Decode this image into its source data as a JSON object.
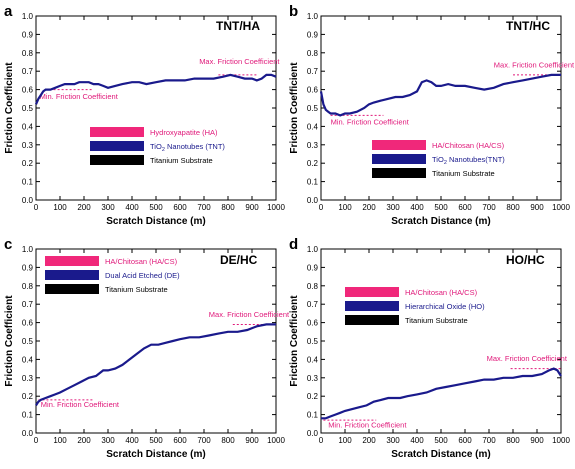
{
  "chart_data": [
    {
      "type": "line",
      "panel": "a",
      "title": "TNT/HA",
      "xlabel": "Scratch Distance (m)",
      "ylabel": "Friction Coefficient",
      "xlim": [
        0,
        1000
      ],
      "ylim": [
        0,
        1.0
      ],
      "xticks": [
        "0",
        "100",
        "200",
        "300",
        "400",
        "500",
        "600",
        "700",
        "800",
        "900",
        "1000"
      ],
      "yticks": [
        "0.0",
        "0.1",
        "0.2",
        "0.3",
        "0.4",
        "0.5",
        "0.6",
        "0.7",
        "0.8",
        "0.9",
        "1.0"
      ],
      "series": [
        {
          "color": "#1a1a8c",
          "x": [
            0,
            10,
            20,
            30,
            40,
            60,
            80,
            100,
            120,
            140,
            160,
            180,
            200,
            220,
            240,
            260,
            280,
            300,
            330,
            360,
            400,
            430,
            460,
            500,
            540,
            580,
            620,
            660,
            700,
            740,
            780,
            810,
            840,
            870,
            900,
            920,
            940,
            960,
            980,
            1000
          ],
          "y": [
            0.52,
            0.55,
            0.57,
            0.59,
            0.6,
            0.6,
            0.61,
            0.62,
            0.63,
            0.63,
            0.63,
            0.64,
            0.64,
            0.64,
            0.63,
            0.63,
            0.62,
            0.61,
            0.62,
            0.63,
            0.64,
            0.64,
            0.63,
            0.64,
            0.65,
            0.65,
            0.65,
            0.66,
            0.66,
            0.66,
            0.67,
            0.68,
            0.67,
            0.66,
            0.66,
            0.65,
            0.66,
            0.68,
            0.68,
            0.67
          ]
        }
      ],
      "annotations": {
        "max": {
          "label": "Max. Friction Coefficient",
          "y": 0.68,
          "x1": 760,
          "x2": 920,
          "label_x": 680,
          "label_y": 0.74
        },
        "min": {
          "label": "Min. Friction Coefficient",
          "y": 0.6,
          "x1": 40,
          "x2": 240,
          "label_x": 15,
          "label_y": 0.55
        }
      },
      "legend": [
        {
          "label": "Hydroxyapatite (HA)",
          "swatch": "#f0287a",
          "text_color": "#e0197a"
        },
        {
          "label": "TiO2 Nanotubes (TNT)",
          "swatch": "#1a1a8c",
          "text_color": "#1a1a8c"
        },
        {
          "label": "Titanium Substrate",
          "swatch": "#000000",
          "text_color": "#000000"
        }
      ]
    },
    {
      "type": "line",
      "panel": "b",
      "title": "TNT/HC",
      "xlabel": "Scratch Distance (m)",
      "ylabel": "Friction Coefficient",
      "xlim": [
        0,
        1000
      ],
      "ylim": [
        0,
        1.0
      ],
      "xticks": [
        "0",
        "100",
        "200",
        "300",
        "400",
        "500",
        "600",
        "700",
        "800",
        "900",
        "1000"
      ],
      "yticks": [
        "0.0",
        "0.1",
        "0.2",
        "0.3",
        "0.4",
        "0.5",
        "0.6",
        "0.7",
        "0.8",
        "0.9",
        "1.0"
      ],
      "series": [
        {
          "color": "#1a1a8c",
          "x": [
            0,
            10,
            20,
            30,
            40,
            60,
            80,
            100,
            120,
            150,
            180,
            200,
            220,
            250,
            280,
            310,
            340,
            370,
            400,
            420,
            440,
            460,
            480,
            500,
            530,
            560,
            600,
            640,
            680,
            720,
            760,
            800,
            840,
            880,
            920,
            960,
            1000
          ],
          "y": [
            0.59,
            0.52,
            0.49,
            0.48,
            0.47,
            0.47,
            0.46,
            0.47,
            0.47,
            0.48,
            0.5,
            0.52,
            0.53,
            0.54,
            0.55,
            0.56,
            0.56,
            0.57,
            0.59,
            0.64,
            0.65,
            0.64,
            0.62,
            0.62,
            0.63,
            0.62,
            0.62,
            0.61,
            0.6,
            0.61,
            0.63,
            0.64,
            0.65,
            0.66,
            0.67,
            0.68,
            0.68
          ]
        }
      ],
      "annotations": {
        "max": {
          "label": "Max. Friction Coefficient",
          "y": 0.68,
          "x1": 800,
          "x2": 1000,
          "label_x": 720,
          "label_y": 0.72
        },
        "min": {
          "label": "Min. Friction Coefficient",
          "y": 0.46,
          "x1": 40,
          "x2": 260,
          "label_x": 40,
          "label_y": 0.41
        }
      },
      "legend": [
        {
          "label": "HA/Chitosan (HA/CS)",
          "swatch": "#f0287a",
          "text_color": "#e0197a"
        },
        {
          "label": "TiO2 Nanotubes(TNT)",
          "swatch": "#1a1a8c",
          "text_color": "#1a1a8c"
        },
        {
          "label": "Titanium Substrate",
          "swatch": "#000000",
          "text_color": "#000000"
        }
      ]
    },
    {
      "type": "line",
      "panel": "c",
      "title": "DE/HC",
      "xlabel": "Scratch Distance (m)",
      "ylabel": "Friction Coefficient",
      "xlim": [
        0,
        1000
      ],
      "ylim": [
        0,
        1.0
      ],
      "xticks": [
        "0",
        "100",
        "200",
        "300",
        "400",
        "500",
        "600",
        "700",
        "800",
        "900",
        "1000"
      ],
      "yticks": [
        "0.0",
        "0.1",
        "0.2",
        "0.3",
        "0.4",
        "0.5",
        "0.6",
        "0.7",
        "0.8",
        "0.9",
        "1.0"
      ],
      "series": [
        {
          "color": "#1a1a8c",
          "x": [
            0,
            10,
            20,
            40,
            60,
            80,
            100,
            130,
            160,
            190,
            220,
            250,
            280,
            300,
            330,
            360,
            390,
            420,
            450,
            480,
            510,
            540,
            570,
            600,
            640,
            680,
            720,
            760,
            800,
            840,
            880,
            920,
            960,
            1000
          ],
          "y": [
            0.15,
            0.17,
            0.18,
            0.19,
            0.2,
            0.21,
            0.22,
            0.24,
            0.26,
            0.28,
            0.3,
            0.31,
            0.34,
            0.34,
            0.35,
            0.37,
            0.4,
            0.43,
            0.46,
            0.48,
            0.48,
            0.49,
            0.5,
            0.51,
            0.52,
            0.52,
            0.53,
            0.54,
            0.55,
            0.55,
            0.56,
            0.58,
            0.59,
            0.59
          ]
        }
      ],
      "annotations": {
        "max": {
          "label": "Max. Friction Coefficient",
          "y": 0.59,
          "x1": 820,
          "x2": 1000,
          "label_x": 720,
          "label_y": 0.63
        },
        "min": {
          "label": "Min. Friction Coefficient",
          "y": 0.18,
          "x1": 10,
          "x2": 240,
          "label_x": 20,
          "label_y": 0.14
        }
      },
      "legend": [
        {
          "label": "HA/Chitosan (HA/CS)",
          "swatch": "#f0287a",
          "text_color": "#e0197a"
        },
        {
          "label": "Dual Acid Etched (DE)",
          "swatch": "#1a1a8c",
          "text_color": "#1a1a8c"
        },
        {
          "label": "Titanium Substrate",
          "swatch": "#000000",
          "text_color": "#000000"
        }
      ]
    },
    {
      "type": "line",
      "panel": "d",
      "title": "HO/HC",
      "xlabel": "Scratch Distance (m)",
      "ylabel": "Friction Coefficient",
      "xlim": [
        0,
        1000
      ],
      "ylim": [
        0,
        1.0
      ],
      "xticks": [
        "0",
        "100",
        "200",
        "300",
        "400",
        "500",
        "600",
        "700",
        "800",
        "900",
        "1000"
      ],
      "yticks": [
        "0.0",
        "0.1",
        "0.2",
        "0.3",
        "0.4",
        "0.5",
        "0.6",
        "0.7",
        "0.8",
        "0.9",
        "1.0"
      ],
      "series": [
        {
          "color": "#1a1a8c",
          "x": [
            0,
            20,
            40,
            60,
            80,
            100,
            130,
            160,
            190,
            220,
            250,
            280,
            300,
            330,
            360,
            400,
            440,
            480,
            520,
            560,
            600,
            640,
            680,
            720,
            760,
            800,
            840,
            880,
            920,
            950,
            970,
            985,
            1000
          ],
          "y": [
            0.08,
            0.08,
            0.09,
            0.1,
            0.11,
            0.12,
            0.13,
            0.14,
            0.15,
            0.17,
            0.18,
            0.19,
            0.19,
            0.19,
            0.2,
            0.21,
            0.22,
            0.24,
            0.25,
            0.26,
            0.27,
            0.28,
            0.29,
            0.29,
            0.3,
            0.3,
            0.31,
            0.31,
            0.32,
            0.34,
            0.35,
            0.34,
            0.31
          ]
        }
      ],
      "annotations": {
        "max": {
          "label": "Max. Friction Coefficient",
          "y": 0.35,
          "x1": 790,
          "x2": 1000,
          "label_x": 690,
          "label_y": 0.39
        },
        "min": {
          "label": "Min. Friction Coefficient",
          "y": 0.07,
          "x1": 10,
          "x2": 230,
          "label_x": 30,
          "label_y": 0.03
        }
      },
      "legend": [
        {
          "label": "HA/Chitosan (HA/CS)",
          "swatch": "#f0287a",
          "text_color": "#e0197a"
        },
        {
          "label": "Hierarchical Oxide (HO)",
          "swatch": "#1a1a8c",
          "text_color": "#1a1a8c"
        },
        {
          "label": "Titanium Substrate",
          "swatch": "#000000",
          "text_color": "#000000"
        }
      ]
    }
  ]
}
